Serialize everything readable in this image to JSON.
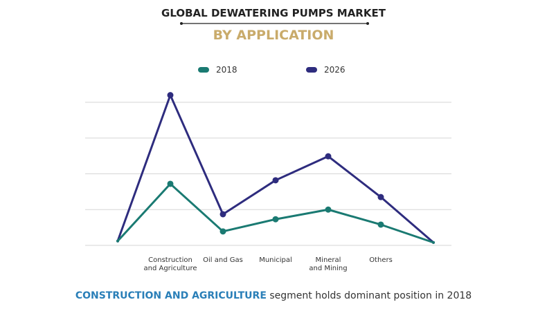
{
  "chart_data": {
    "type": "line",
    "title": "GLOBAL DEWATERING PUMPS MARKET",
    "subtitle": "BY APPLICATION",
    "categories": [
      "",
      "Construction and Agriculture",
      "Oil and Gas",
      "Municipal",
      "Mineral and Mining",
      "Others",
      ""
    ],
    "category_lines": [
      [],
      [
        "Construction",
        "and Agriculture"
      ],
      [
        "Oil and Gas"
      ],
      [
        "Municipal"
      ],
      [
        "Mineral",
        "and Mining"
      ],
      [
        "Others"
      ],
      []
    ],
    "series": [
      {
        "name": "2018",
        "color": "#1a7a72",
        "values": [
          0.12,
          1.72,
          0.39,
          0.73,
          1.0,
          0.58,
          0.08
        ]
      },
      {
        "name": "2026",
        "color": "#2e2c7e",
        "values": [
          0.12,
          4.2,
          0.87,
          1.82,
          2.49,
          1.35,
          0.08
        ]
      }
    ],
    "ylim": [
      0,
      4
    ],
    "y_tick_labels_shown": false,
    "grid": true,
    "legend_position": "top-center",
    "xlabel": "",
    "ylabel": "",
    "caption": {
      "highlight": "CONSTRUCTION AND AGRICULTURE",
      "rest": " segment holds dominant position in 2018",
      "highlight_color": "#2a7fb8"
    },
    "subtitle_color": "#c9ab6b"
  }
}
